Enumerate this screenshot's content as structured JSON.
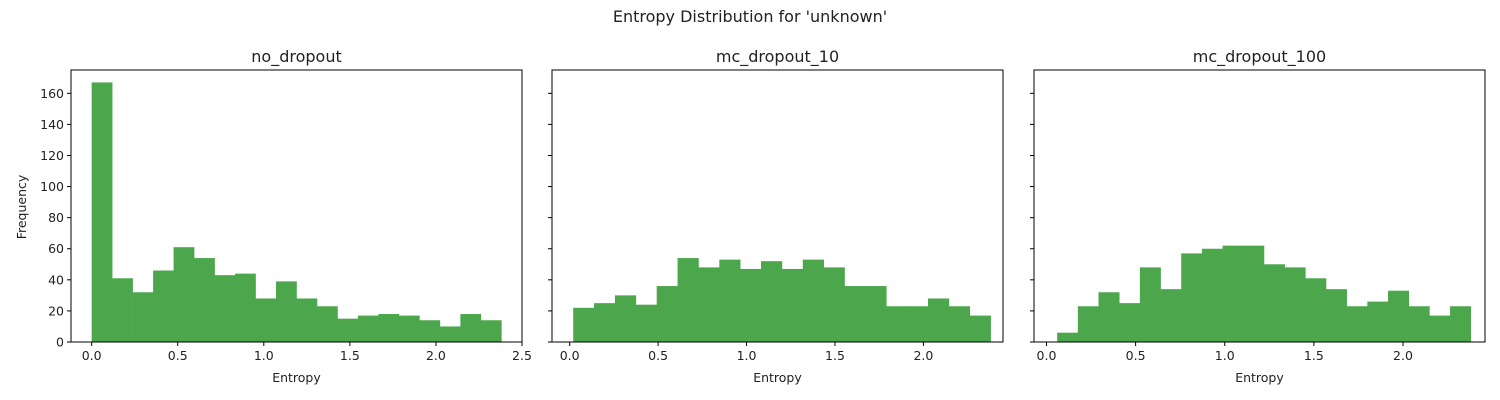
{
  "figure": {
    "title": "Entropy Distribution for 'unknown'"
  },
  "chart_data": {
    "type": "bar",
    "shared_ylabel": "Frequency",
    "ylim": [
      0,
      175
    ],
    "yticks": [
      0,
      20,
      40,
      60,
      80,
      100,
      120,
      140,
      160
    ],
    "bar_color": "#4ca64c",
    "grid": false,
    "panels": [
      {
        "title": "no_dropout",
        "xlabel": "Entropy",
        "xlim": [
          -0.12,
          2.5
        ],
        "xticks": [
          0.0,
          0.5,
          1.0,
          1.5,
          2.0,
          2.5
        ],
        "show_ytick_labels": true,
        "bins": [
          0.0,
          0.119,
          0.238,
          0.357,
          0.476,
          0.595,
          0.714,
          0.833,
          0.952,
          1.071,
          1.19,
          1.309,
          1.428,
          1.547,
          1.666,
          1.785,
          1.904,
          2.023,
          2.142,
          2.261,
          2.38
        ],
        "values": [
          167,
          41,
          32,
          46,
          61,
          54,
          43,
          44,
          28,
          39,
          28,
          23,
          15,
          17,
          18,
          17,
          14,
          10,
          18,
          14
        ]
      },
      {
        "title": "mc_dropout_10",
        "xlabel": "Entropy",
        "xlim": [
          -0.1,
          2.45
        ],
        "xticks": [
          0.0,
          0.5,
          1.0,
          1.5,
          2.0
        ],
        "show_ytick_labels": false,
        "bins": [
          0.02,
          0.138,
          0.256,
          0.374,
          0.492,
          0.61,
          0.728,
          0.846,
          0.964,
          1.082,
          1.2,
          1.318,
          1.436,
          1.554,
          1.672,
          1.79,
          1.908,
          2.026,
          2.144,
          2.262,
          2.38
        ],
        "values": [
          22,
          25,
          30,
          24,
          36,
          54,
          48,
          53,
          47,
          52,
          47,
          53,
          48,
          36,
          36,
          23,
          23,
          28,
          23,
          17
        ]
      },
      {
        "title": "mc_dropout_100",
        "xlabel": "Entropy",
        "xlim": [
          -0.07,
          2.46
        ],
        "xticks": [
          0.0,
          0.5,
          1.0,
          1.5,
          2.0
        ],
        "show_ytick_labels": false,
        "bins": [
          0.06,
          0.176,
          0.292,
          0.408,
          0.524,
          0.64,
          0.756,
          0.872,
          0.988,
          1.104,
          1.22,
          1.336,
          1.452,
          1.568,
          1.684,
          1.8,
          1.916,
          2.032,
          2.148,
          2.264,
          2.38
        ],
        "values": [
          6,
          23,
          32,
          25,
          48,
          34,
          57,
          60,
          62,
          62,
          50,
          48,
          41,
          34,
          23,
          26,
          33,
          23,
          17,
          23
        ]
      }
    ]
  }
}
